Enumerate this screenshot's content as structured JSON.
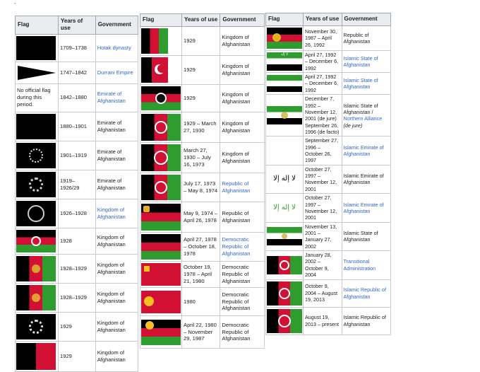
{
  "headers": {
    "flag": "Flag",
    "years": "Years of use",
    "government": "Government"
  },
  "table1": [
    {
      "years": "1709–1738",
      "gov": "Hotak dynasty",
      "link": true
    },
    {
      "years": "1747–1842",
      "gov": "Durrani Empire",
      "link": true
    },
    {
      "flag_text": "No official flag during this period.",
      "years": "1842–1880",
      "gov": "Emirate of Afghanistan",
      "link": true
    },
    {
      "years": "1880–1901",
      "gov": "Emirate of Afghanistan",
      "link": false
    },
    {
      "years": "1901–1919",
      "gov": "Emirate of Afghanistan",
      "link": false
    },
    {
      "years": "1919–1926/29",
      "gov": "Emirate of Afghanistan",
      "link": false
    },
    {
      "years": "1926–1928",
      "gov": "Kingdom of Afghanistan",
      "link": true
    },
    {
      "years": "1928",
      "gov": "Kingdom of Afghanistan",
      "link": false
    },
    {
      "years": "1928–1929",
      "gov": "Kingdom of Afghanistan",
      "link": false
    },
    {
      "years": "1928–1929",
      "gov": "Kingdom of Afghanistan",
      "link": false
    },
    {
      "years": "1929",
      "gov": "Kingdom of Afghanistan",
      "link": false
    },
    {
      "years": "1929",
      "gov": "Kingdom of Afghanistan",
      "link": false
    }
  ],
  "table2": [
    {
      "years": "1929",
      "gov": "Kingdom of Afghanistan",
      "link": false
    },
    {
      "years": "1929",
      "gov": "Kingdom of Afghanistan",
      "link": false
    },
    {
      "years": "1929",
      "gov": "Kingdom of Afghanistan",
      "link": false
    },
    {
      "years": "1929 – March 27, 1930",
      "gov": "Kingdom of Afghanistan",
      "link": false
    },
    {
      "years": "March 27, 1930 – July 16, 1973",
      "gov": "Kingdom of Afghanistan",
      "link": false
    },
    {
      "years": "July 17, 1973 – May 8, 1974",
      "gov": "Republic of Afghanistan",
      "link": true
    },
    {
      "years": "May 9, 1974 – April 26, 1978",
      "gov": "Republic of Afghanistan",
      "link": false
    },
    {
      "years": "April 27, 1978 – October 18, 1978",
      "gov": "Democratic Republic of Afghanistan",
      "link": true
    },
    {
      "years": "October 19, 1978 – April 21, 1980",
      "gov": "Democratic Republic of Afghanistan",
      "link": false
    },
    {
      "years": "1980",
      "gov": "Democratic Republic of Afghanistan",
      "link": false
    },
    {
      "years": "April 22, 1980 – November 29, 1987",
      "gov": "Democratic Republic of Afghanistan",
      "link": false
    }
  ],
  "table3": [
    {
      "years": "November 30, 1987 – April 26, 1992",
      "gov": "Republic of Afghanistan",
      "link": false
    },
    {
      "years": "April 27, 1992 – December 6, 1992",
      "gov": "Islamic State of Afghanistan",
      "link": true
    },
    {
      "years": "April 27, 1992 – December 6, 1992",
      "gov": "Islamic State of Afghanistan",
      "link": true
    },
    {
      "years": "December 7, 1992 – November 12, 2001 (de jure) September 26, 1996 (de facto)",
      "gov_a": "Islamic State of Afghanistan /",
      "gov_b": "Northern Alliance",
      "gov_c": "(de jure)",
      "split": true
    },
    {
      "years": "September 27, 1996 – October 26, 1997",
      "gov": "Islamic Emirate of Afghanistan",
      "link": true
    },
    {
      "years": "October 27, 1997 – November 12, 2001",
      "gov": "Islamic Emirate of Afghanistan",
      "link": false
    },
    {
      "years": "October 27, 1997 – November 12, 2001",
      "gov": "Islamic Emirate of Afghanistan",
      "link": true
    },
    {
      "years": "November 13, 2001 – January 27, 2002",
      "gov": "Islamic State of Afghanistan",
      "link": false
    },
    {
      "years": "January 28, 2002 – October 9, 2004",
      "gov": "Transitional Administration",
      "link": true
    },
    {
      "years": "October 9, 2004 – August 19, 2013",
      "gov": "Islamic Republic of Afghanistan",
      "link": true
    },
    {
      "years": "August 19, 2013 – present",
      "gov": "Islamic Republic of Afghanistan",
      "link": false
    }
  ]
}
